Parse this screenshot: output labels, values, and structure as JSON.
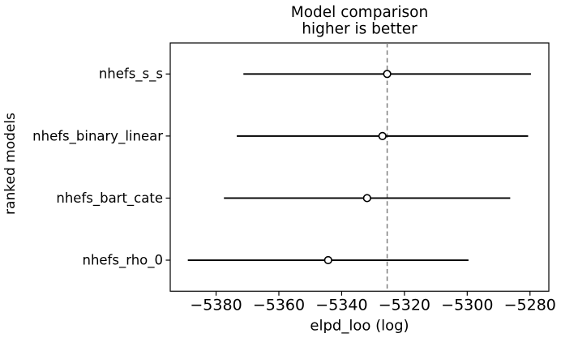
{
  "figure": {
    "background": "#ffffff"
  },
  "chart_data": {
    "type": "errorbar",
    "title": "Model comparison",
    "subtitle": "higher is better",
    "xlabel": "elpd_loo (log)",
    "ylabel": "ranked models",
    "xlim": [
      -5394.6,
      -5274.0
    ],
    "xticks": [
      -5380,
      -5360,
      -5340,
      -5320,
      -5300,
      -5280
    ],
    "grid": false,
    "legend": "none",
    "models": [
      {
        "name": "nhefs_s_s",
        "rank": 0,
        "elpd_loo": -5325.5,
        "se": 45.8,
        "lower": -5371.3,
        "upper": -5279.7
      },
      {
        "name": "nhefs_binary_linear",
        "rank": 1,
        "elpd_loo": -5327.0,
        "se": 46.4,
        "lower": -5373.4,
        "upper": -5280.6
      },
      {
        "name": "nhefs_bart_cate",
        "rank": 2,
        "elpd_loo": -5331.9,
        "se": 45.6,
        "lower": -5377.5,
        "upper": -5286.3
      },
      {
        "name": "nhefs_rho_0",
        "rank": 3,
        "elpd_loo": -5344.3,
        "se": 44.7,
        "lower": -5389.0,
        "upper": -5299.6
      }
    ],
    "reference_line": {
      "value": -5325.5,
      "orientation": "vertical",
      "style": "dashed",
      "color": "#7f7f7f"
    },
    "colors": {
      "line": "#000000",
      "marker_fill": "#ffffff",
      "marker_edge": "#000000",
      "frame": "#000000",
      "text": "#000000"
    }
  }
}
